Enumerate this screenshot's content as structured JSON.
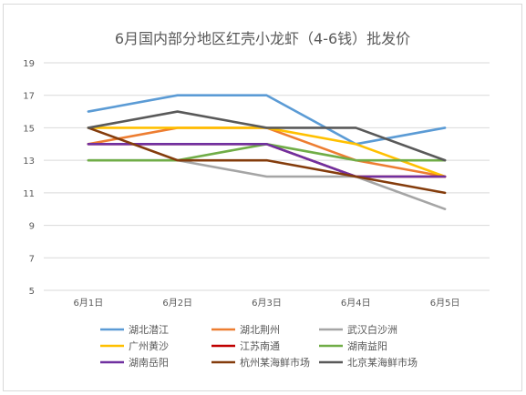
{
  "chart_data": {
    "type": "line",
    "title": "6月国内部分地区红壳小龙虾（4-6钱）批发价",
    "xlabel": "",
    "ylabel": "",
    "categories": [
      "6月1日",
      "6月2日",
      "6月3日",
      "6月4日",
      "6月5日"
    ],
    "ylim": [
      5,
      19
    ],
    "yticks": [
      5,
      7,
      9,
      11,
      13,
      15,
      17,
      19
    ],
    "grid": true,
    "legend_position": "bottom",
    "series": [
      {
        "name": "湖北潜江",
        "color": "#5b9bd5",
        "values": [
          16,
          17,
          17,
          14,
          15
        ]
      },
      {
        "name": "湖北荆州",
        "color": "#ed7d31",
        "values": [
          14,
          15,
          15,
          13,
          12
        ]
      },
      {
        "name": "武汉白沙洲",
        "color": "#a5a5a5",
        "values": [
          13,
          13,
          12,
          12,
          10
        ]
      },
      {
        "name": "广州黄沙",
        "color": "#ffc000",
        "values": [
          15,
          15,
          15,
          14,
          12
        ]
      },
      {
        "name": "江苏南通",
        "color": "#c00000",
        "values": [
          14,
          14,
          14,
          12,
          12
        ]
      },
      {
        "name": "湖南益阳",
        "color": "#70ad47",
        "values": [
          13,
          13,
          14,
          13,
          13
        ]
      },
      {
        "name": "湖南岳阳",
        "color": "#7030a0",
        "values": [
          14,
          14,
          14,
          12,
          12
        ]
      },
      {
        "name": "杭州某海鲜市场",
        "color": "#843c0c",
        "values": [
          15,
          13,
          13,
          12,
          11
        ]
      },
      {
        "name": "北京某海鲜市场",
        "color": "#595959",
        "values": [
          15,
          16,
          15,
          15,
          13
        ]
      }
    ]
  }
}
